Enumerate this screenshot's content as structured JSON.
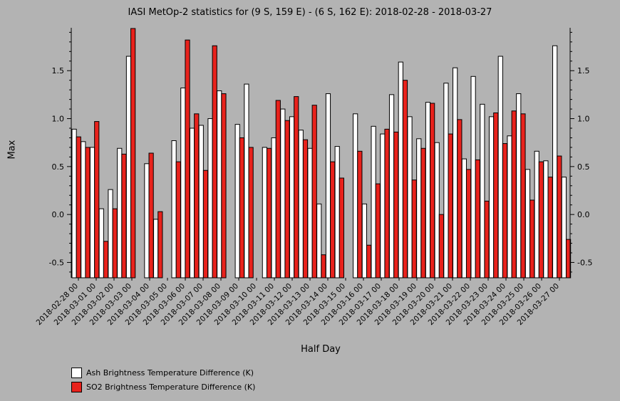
{
  "chart_data": {
    "type": "bar",
    "title": "IASI MetOp-2 statistics for (9 S, 159 E) - (6 S, 162 E): 2018-02-28 - 2018-03-27",
    "xlabel": "Half Day",
    "ylabel": "Max",
    "ylim": [
      -0.66,
      1.94
    ],
    "yticks": [
      -0.5,
      0.0,
      0.5,
      1.0,
      1.5
    ],
    "ytick_labels": [
      "-0.5",
      "0.0",
      "0.5",
      "1.0",
      "1.5"
    ],
    "xtick_labels": [
      "2018-02-28 00",
      "2018-03-01 00",
      "2018-03-02 00",
      "2018-03-03 00",
      "2018-03-04 00",
      "2018-03-05 00",
      "2018-03-06 00",
      "2018-03-07 00",
      "2018-03-08 00",
      "2018-03-09 00",
      "2018-03-10 00",
      "2018-03-11 00",
      "2018-03-12 00",
      "2018-03-13 00",
      "2018-03-14 00",
      "2018-03-15 00",
      "2018-03-16 00",
      "2018-03-17 00",
      "2018-03-18 00",
      "2018-03-19 00",
      "2018-03-20 00",
      "2018-03-21 00",
      "2018-03-22 00",
      "2018-03-23 00",
      "2018-03-24 00",
      "2018-03-25 00",
      "2018-03-26 00",
      "2018-03-27 00"
    ],
    "series": [
      {
        "name": "Ash Brightness Temperature Difference (K)",
        "color": "#ffffff",
        "values": [
          0.89,
          0.76,
          0.7,
          0.06,
          0.26,
          0.69,
          1.65,
          null,
          0.53,
          -0.05,
          null,
          0.77,
          1.32,
          0.9,
          0.93,
          1.0,
          1.29,
          null,
          0.94,
          1.36,
          null,
          0.7,
          0.8,
          1.1,
          1.02,
          0.88,
          0.69,
          0.11,
          1.26,
          0.71,
          null,
          1.05,
          0.11,
          0.92,
          0.84,
          1.25,
          1.59,
          1.02,
          0.79,
          1.17,
          0.75,
          1.37,
          1.53,
          0.58,
          1.44,
          1.15,
          1.02,
          1.65,
          0.82,
          1.26,
          0.47,
          0.66,
          0.56,
          1.76,
          0.39
        ]
      },
      {
        "name": "SO2 Brightness Temperature Difference (K)",
        "color": "#e8221c",
        "values": [
          0.81,
          0.7,
          0.97,
          -0.28,
          0.06,
          0.63,
          1.94,
          null,
          0.64,
          0.03,
          null,
          0.55,
          1.82,
          1.05,
          0.46,
          1.76,
          1.26,
          null,
          0.8,
          0.7,
          null,
          0.69,
          1.19,
          0.98,
          1.23,
          0.78,
          1.14,
          -0.42,
          0.55,
          0.38,
          null,
          0.66,
          -0.32,
          0.32,
          0.89,
          0.86,
          1.4,
          0.36,
          0.69,
          1.16,
          0.0,
          0.84,
          0.99,
          0.47,
          0.57,
          0.14,
          1.06,
          0.74,
          1.08,
          1.05,
          0.15,
          0.55,
          0.39,
          0.61,
          -0.26
        ]
      }
    ],
    "legend_position": "bottom-left",
    "grid": false
  }
}
